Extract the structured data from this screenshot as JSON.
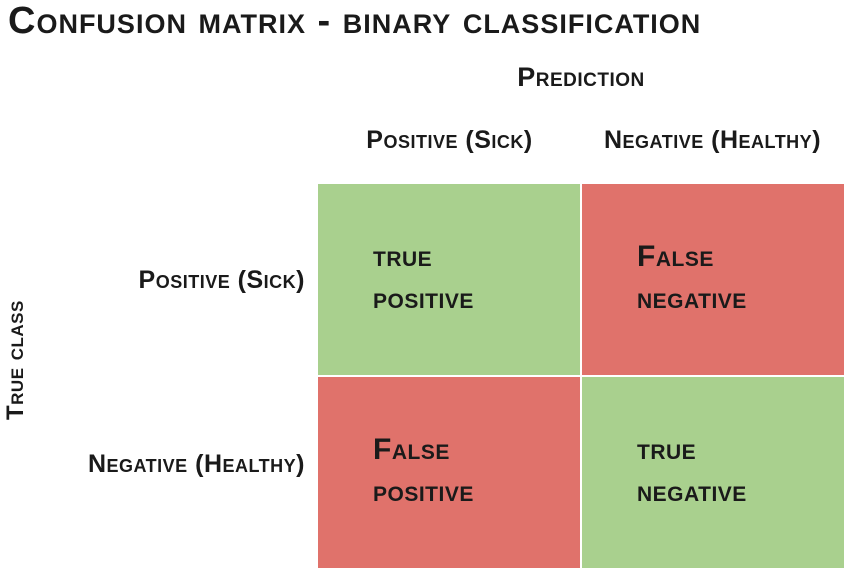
{
  "title": "Confusion matrix - binary classification",
  "axes": {
    "prediction": "Prediction",
    "true_class": "True class"
  },
  "column_headers": [
    {
      "label": "Positive (Sick)"
    },
    {
      "label": "Negative (Healthy)"
    }
  ],
  "row_headers": [
    {
      "label": "Positive (Sick)"
    },
    {
      "label": "Negative (Healthy)"
    }
  ],
  "cells": [
    {
      "name": "true-positive",
      "line1": "true",
      "line2": "positive",
      "color": "#a9d08e"
    },
    {
      "name": "false-negative",
      "line1": "False",
      "line2": "negative",
      "color": "#e0726b"
    },
    {
      "name": "false-positive",
      "line1": "False",
      "line2": "positive",
      "color": "#e0726b"
    },
    {
      "name": "true-negative",
      "line1": "true",
      "line2": "negative",
      "color": "#a9d08e"
    }
  ],
  "colors": {
    "correct": "#a9d08e",
    "incorrect": "#e0726b",
    "text": "#1a1a1a",
    "background": "#ffffff"
  }
}
